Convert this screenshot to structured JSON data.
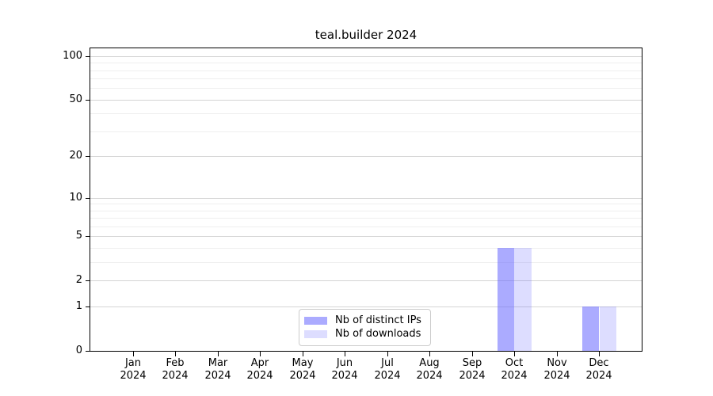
{
  "chart_data": {
    "type": "bar",
    "title": "teal.builder 2024",
    "categories": [
      {
        "month": "Jan",
        "year": "2024"
      },
      {
        "month": "Feb",
        "year": "2024"
      },
      {
        "month": "Mar",
        "year": "2024"
      },
      {
        "month": "Apr",
        "year": "2024"
      },
      {
        "month": "May",
        "year": "2024"
      },
      {
        "month": "Jun",
        "year": "2024"
      },
      {
        "month": "Jul",
        "year": "2024"
      },
      {
        "month": "Aug",
        "year": "2024"
      },
      {
        "month": "Sep",
        "year": "2024"
      },
      {
        "month": "Oct",
        "year": "2024"
      },
      {
        "month": "Nov",
        "year": "2024"
      },
      {
        "month": "Dec",
        "year": "2024"
      }
    ],
    "series": [
      {
        "name": "Nb of distinct IPs",
        "color": "rgba(102,102,255,0.55)",
        "values": [
          0,
          0,
          0,
          0,
          0,
          0,
          0,
          0,
          0,
          4,
          0,
          1
        ]
      },
      {
        "name": "Nb of downloads",
        "color": "rgba(102,102,255,0.22)",
        "values": [
          0,
          0,
          0,
          0,
          0,
          0,
          0,
          0,
          0,
          4,
          0,
          1
        ]
      }
    ],
    "xlabel": "",
    "ylabel": "",
    "yscale": "log1p",
    "ylim": [
      0,
      113
    ],
    "yticks": [
      0,
      1,
      2,
      5,
      10,
      20,
      50,
      100
    ],
    "minor_yticks": [
      3,
      4,
      6,
      7,
      8,
      9,
      30,
      40,
      60,
      70,
      80,
      90
    ],
    "grid": "horizontal-major-and-minor",
    "legend_position": "lower-center"
  },
  "colors": {
    "major_grid": "#d4d4d4",
    "minor_grid": "#efefef",
    "axis": "#000000",
    "legend_border": "#cccccc"
  }
}
